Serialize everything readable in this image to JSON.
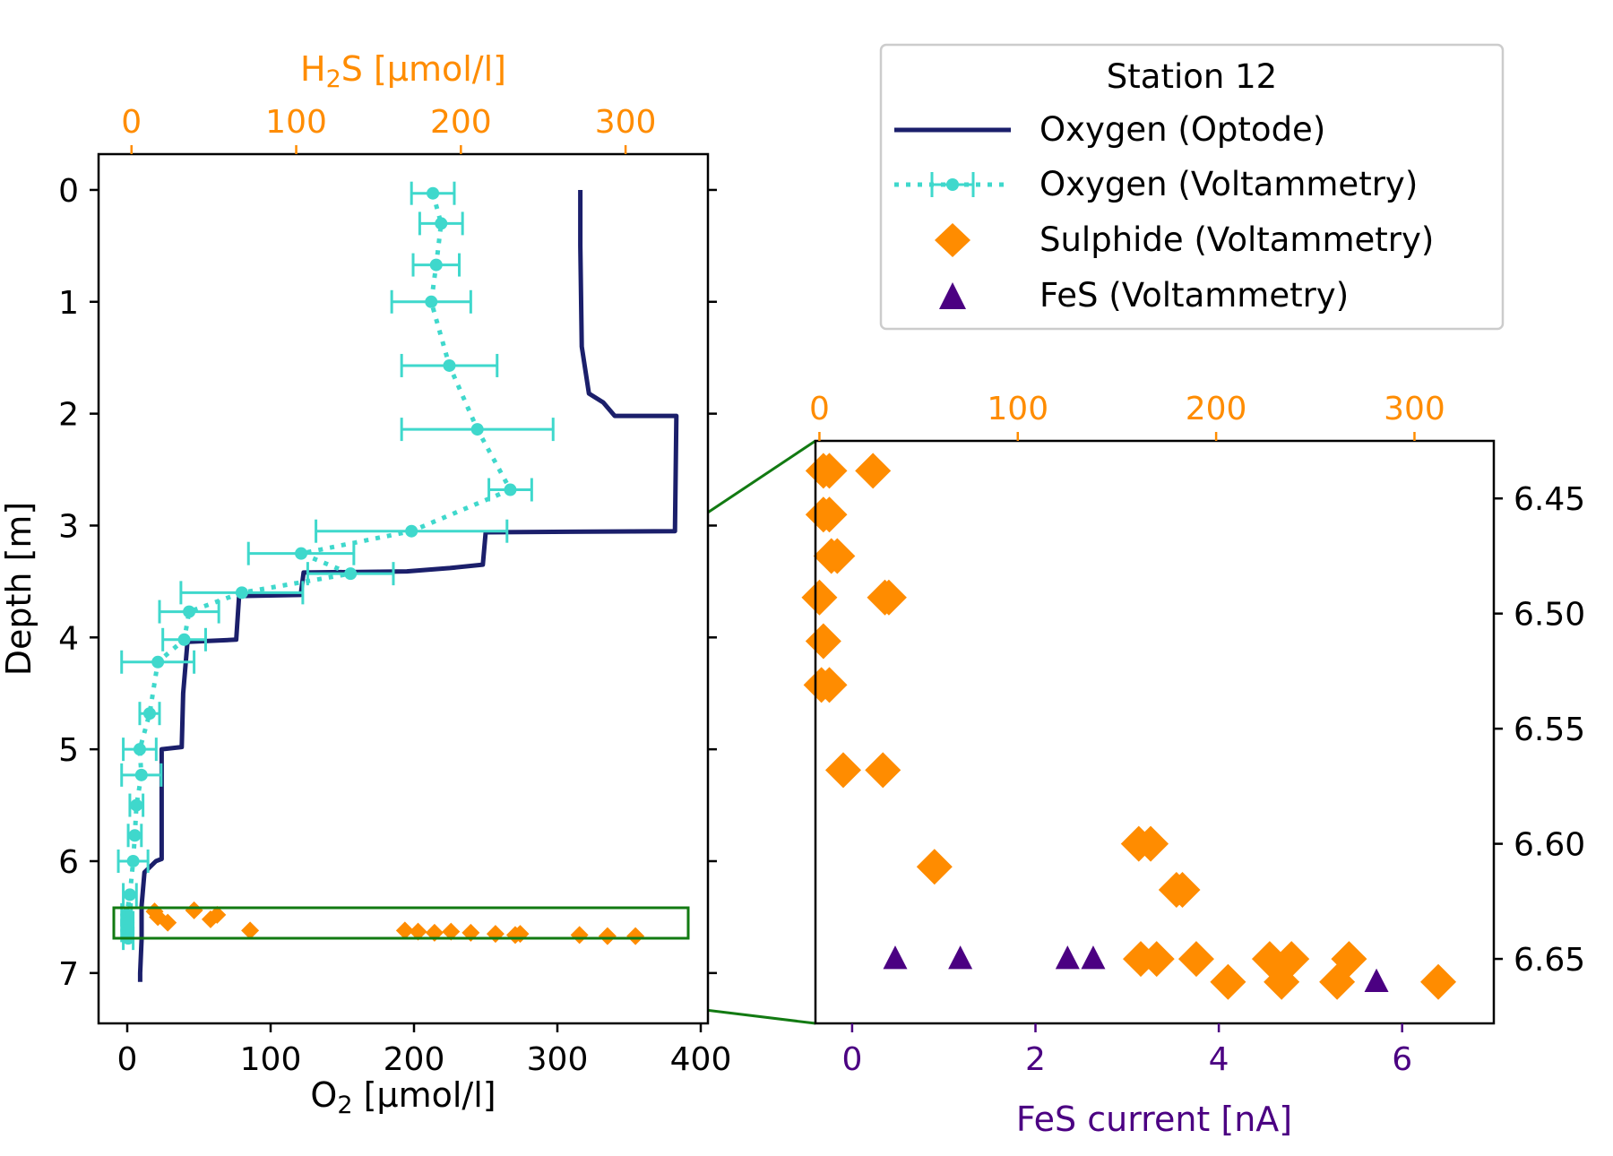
{
  "colors": {
    "oxygen_optode": "#1b1f6b",
    "oxygen_voltammetry": "#3fd8cc",
    "sulphide": "#ff8c00",
    "fes": "#4b0082",
    "h2s_axis": "#ff8c00",
    "fes_axis": "#4b0082",
    "zoom_box": "#127a12"
  },
  "chart_data": [
    {
      "type": "line",
      "panel": "main",
      "ylabel": "Depth [m]",
      "xlabel_bottom": {
        "pre": "O",
        "sub": "2",
        "post": " [μmol/l]"
      },
      "xlabel_top": {
        "pre": "H",
        "sub": "2",
        "post": "S [μmol/l]"
      },
      "ylim": [
        7.45,
        -0.32
      ],
      "xlim_bottom": [
        -20,
        405
      ],
      "xlim_top": [
        -20,
        350
      ],
      "yticks": [
        0,
        1,
        2,
        3,
        4,
        5,
        6,
        7
      ],
      "xticks_bottom": [
        0,
        100,
        200,
        300,
        400
      ],
      "xticks_top": [
        0,
        100,
        200,
        300
      ],
      "legend": {
        "title": "Station 12",
        "position": "top-right",
        "entries": [
          "Oxygen (Optode)",
          "Oxygen (Voltammetry)",
          "Sulphide (Voltammetry)",
          "FeS (Voltammetry)"
        ]
      },
      "series": [
        {
          "name": "Oxygen (Optode)",
          "axis": "bottom",
          "points": [
            [
              316,
              0
            ],
            [
              316,
              0.5
            ],
            [
              317,
              1.4
            ],
            [
              322,
              1.82
            ],
            [
              332,
              1.9
            ],
            [
              340,
              2.02
            ],
            [
              383,
              2.02
            ],
            [
              382,
              3.05
            ],
            [
              250,
              3.06
            ],
            [
              248,
              3.35
            ],
            [
              225,
              3.38
            ],
            [
              195,
              3.41
            ],
            [
              123,
              3.42
            ],
            [
              121,
              3.62
            ],
            [
              78,
              3.63
            ],
            [
              76,
              4.02
            ],
            [
              42,
              4.04
            ],
            [
              39,
              4.5
            ],
            [
              38,
              4.98
            ],
            [
              24,
              5.0
            ],
            [
              24,
              5.98
            ],
            [
              20,
              6.0
            ],
            [
              12,
              6.1
            ],
            [
              10,
              6.4
            ],
            [
              10,
              6.7
            ],
            [
              9,
              7.0
            ],
            [
              9,
              7.08
            ]
          ]
        },
        {
          "name": "Oxygen (Voltammetry)",
          "axis": "top",
          "points": [
            [
              183,
              0.03
            ],
            [
              188,
              0.3
            ],
            [
              185,
              0.67
            ],
            [
              182,
              1.0
            ],
            [
              193,
              1.57
            ],
            [
              210,
              2.14
            ],
            [
              230,
              2.68
            ],
            [
              170,
              3.05
            ],
            [
              103,
              3.25
            ],
            [
              133,
              3.43
            ],
            [
              67,
              3.6
            ],
            [
              35,
              3.77
            ],
            [
              32,
              4.02
            ],
            [
              16,
              4.22
            ],
            [
              11,
              4.68
            ],
            [
              5,
              5.0
            ],
            [
              6,
              5.23
            ],
            [
              3,
              5.5
            ],
            [
              2,
              5.77
            ],
            [
              1,
              6.0
            ],
            [
              -1,
              6.3
            ],
            [
              -3,
              6.48
            ],
            [
              -2,
              6.55
            ],
            [
              -3,
              6.62
            ],
            [
              -2,
              6.69
            ]
          ],
          "xerr": [
            13,
            13,
            14,
            24,
            29,
            46,
            13,
            58,
            32,
            26,
            37,
            18,
            13,
            22,
            6,
            10,
            12,
            4,
            4,
            9,
            4,
            3,
            3,
            3,
            3
          ]
        },
        {
          "name": "Sulphide (Voltammetry)",
          "axis": "top",
          "points": [
            [
              14,
              6.45
            ],
            [
              16,
              6.5
            ],
            [
              22,
              6.55
            ],
            [
              38,
              6.44
            ],
            [
              48,
              6.52
            ],
            [
              52,
              6.48
            ],
            [
              72,
              6.62
            ],
            [
              166,
              6.62
            ],
            [
              174,
              6.63
            ],
            [
              184,
              6.64
            ],
            [
              194,
              6.63
            ],
            [
              206,
              6.64
            ],
            [
              221,
              6.65
            ],
            [
              233,
              6.66
            ],
            [
              236,
              6.65
            ],
            [
              272,
              6.66
            ],
            [
              289,
              6.67
            ],
            [
              306,
              6.67
            ]
          ]
        }
      ]
    },
    {
      "type": "scatter",
      "panel": "zoom",
      "xlabel": "FeS current [nA]",
      "xlim_bottom": [
        -0.4,
        7.0
      ],
      "xlim_top": [
        -2,
        340
      ],
      "ylim": [
        6.425,
        6.678
      ],
      "xticks_bottom": [
        0,
        2,
        4,
        6
      ],
      "xticks_top": [
        0,
        100,
        200,
        300
      ],
      "yticks": [
        6.45,
        6.5,
        6.55,
        6.6,
        6.65
      ],
      "ytick_labels": [
        "6.45",
        "6.50",
        "6.55",
        "6.60",
        "6.65"
      ],
      "series": [
        {
          "name": "Sulphide (Voltammetry)",
          "axis": "top",
          "points": [
            [
              2,
              6.438
            ],
            [
              5,
              6.438
            ],
            [
              27,
              6.438
            ],
            [
              2,
              6.457
            ],
            [
              5,
              6.457
            ],
            [
              6,
              6.475
            ],
            [
              9,
              6.475
            ],
            [
              0,
              6.493
            ],
            [
              33,
              6.493
            ],
            [
              35,
              6.493
            ],
            [
              2,
              6.512
            ],
            [
              1,
              6.531
            ],
            [
              5,
              6.531
            ],
            [
              12,
              6.568
            ],
            [
              32,
              6.568
            ],
            [
              58,
              6.61
            ],
            [
              161,
              6.6
            ],
            [
              167,
              6.6
            ],
            [
              180,
              6.62
            ],
            [
              183,
              6.62
            ],
            [
              162,
              6.65
            ],
            [
              170,
              6.65
            ],
            [
              190,
              6.65
            ],
            [
              206,
              6.66
            ],
            [
              227,
              6.65
            ],
            [
              233,
              6.66
            ],
            [
              238,
              6.65
            ],
            [
              261,
              6.66
            ],
            [
              267,
              6.65
            ],
            [
              312,
              6.66
            ]
          ]
        },
        {
          "name": "FeS (Voltammetry)",
          "axis": "bottom",
          "points": [
            [
              0.47,
              6.65
            ],
            [
              1.18,
              6.65
            ],
            [
              2.35,
              6.65
            ],
            [
              2.63,
              6.65
            ],
            [
              5.72,
              6.66
            ]
          ]
        }
      ]
    }
  ]
}
